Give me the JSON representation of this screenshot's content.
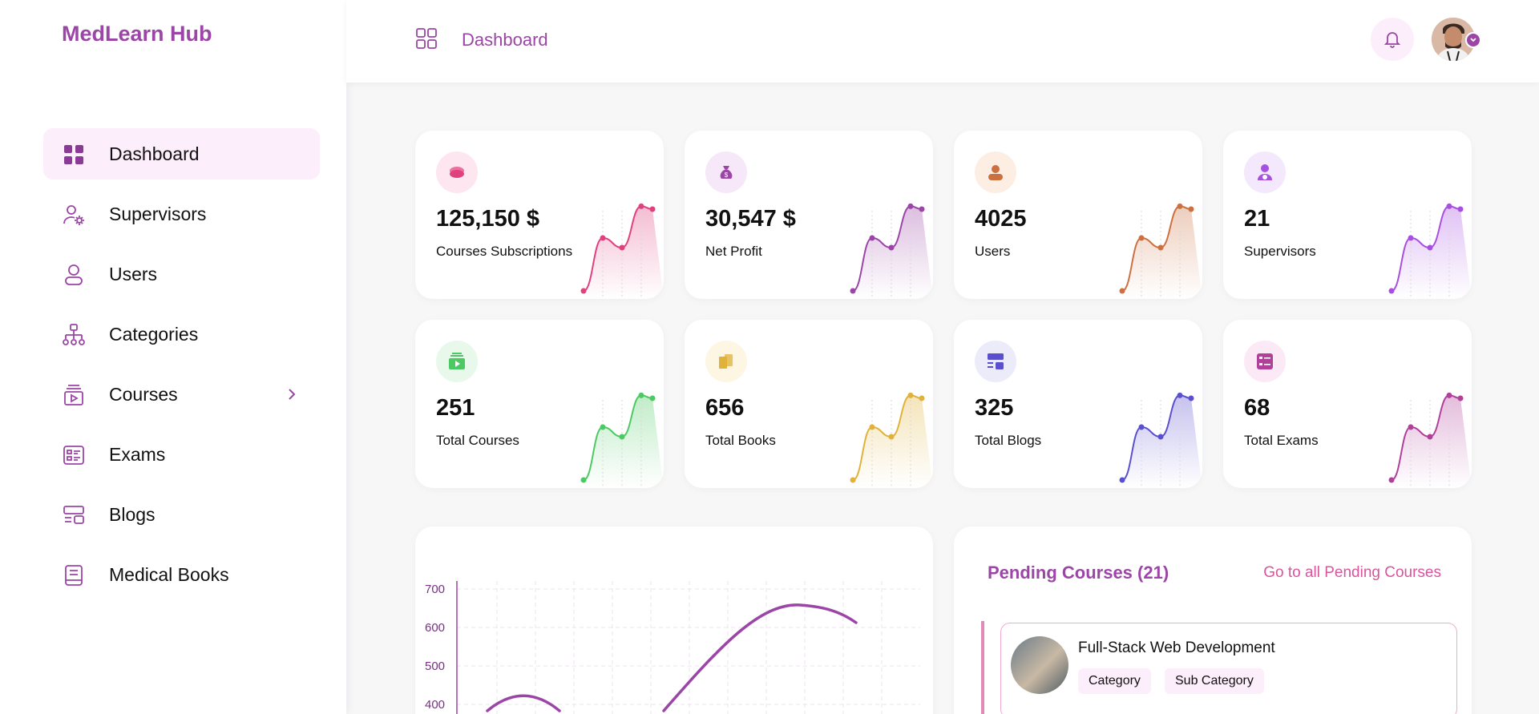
{
  "app": {
    "brand": "MedLearn Hub"
  },
  "sidebar": {
    "items": [
      {
        "label": "Dashboard",
        "icon": "grid-icon",
        "active": true
      },
      {
        "label": "Supervisors",
        "icon": "user-gear-icon"
      },
      {
        "label": "Users",
        "icon": "user-icon"
      },
      {
        "label": "Categories",
        "icon": "hierarchy-icon"
      },
      {
        "label": "Courses",
        "icon": "course-play-icon",
        "has_submenu": true
      },
      {
        "label": "Exams",
        "icon": "exam-list-icon"
      },
      {
        "label": "Blogs",
        "icon": "blog-layout-icon"
      },
      {
        "label": "Medical Books",
        "icon": "book-icon"
      }
    ]
  },
  "header": {
    "title": "Dashboard",
    "icons": [
      "grid-icon",
      "bell-icon",
      "avatar",
      "chevron-down-icon"
    ]
  },
  "colors": {
    "accent": "#9b45a6",
    "link": "#d9559c"
  },
  "stats": [
    {
      "value": "125,150 $",
      "label": "Courses Subscriptions",
      "color": "#e0407e",
      "icon": "coins-icon",
      "icon_bg": "#fde6ef"
    },
    {
      "value": "30,547 $",
      "label": "Net Profit",
      "color": "#9b45a6",
      "icon": "money-bag-icon",
      "icon_bg": "#f6e8f8"
    },
    {
      "value": "4025",
      "label": "Users",
      "color": "#cc7040",
      "icon": "user-icon",
      "icon_bg": "#fdeee4"
    },
    {
      "value": "21",
      "label": "Supervisors",
      "color": "#a64fe0",
      "icon": "supervisor-icon",
      "icon_bg": "#f3e8fc"
    },
    {
      "value": "251",
      "label": "Total Courses",
      "color": "#4cc962",
      "icon": "course-play-icon",
      "icon_bg": "#e8f9ec"
    },
    {
      "value": "656",
      "label": "Total Books",
      "color": "#e0b23a",
      "icon": "books-icon",
      "icon_bg": "#fdf6e3"
    },
    {
      "value": "325",
      "label": "Total Blogs",
      "color": "#5a4fcf",
      "icon": "blog-layout-icon",
      "icon_bg": "#ecebf9"
    },
    {
      "value": "68",
      "label": "Total Exams",
      "color": "#b0409a",
      "icon": "exam-list-icon",
      "icon_bg": "#fbe9f6"
    }
  ],
  "chart_data": {
    "type": "line",
    "y_ticks": [
      "700",
      "600",
      "500",
      "400"
    ],
    "ylim": [
      400,
      700
    ],
    "series_color": "#9b45a6",
    "grid": true
  },
  "pending": {
    "title": "Pending Courses (21)",
    "link": "Go to all Pending Courses",
    "course": {
      "name": "Full-Stack Web Development",
      "tags": [
        "Category",
        "Sub Category"
      ]
    }
  }
}
